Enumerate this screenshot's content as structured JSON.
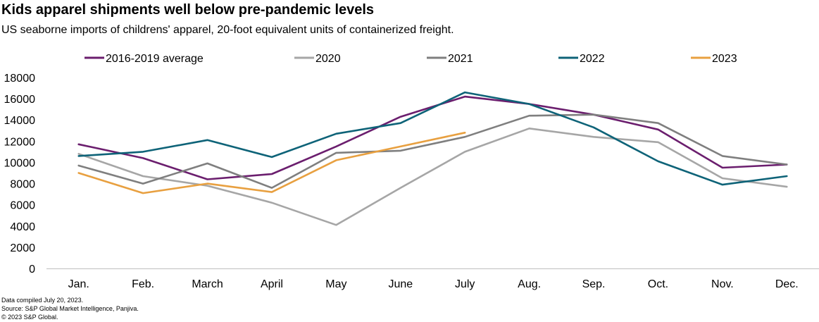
{
  "header": {
    "title": "Kids apparel shipments well below pre-pandemic levels",
    "subtitle": "US seaborne imports of childrens' apparel, 20-foot equivalent units of containerized freight."
  },
  "footnotes": {
    "compiled": "Data compiled July 20, 2023.",
    "source": "Source: S&P Global Market Intelligence, Panjiva.",
    "copyright": "© 2023 S&P Global."
  },
  "chart_data": {
    "type": "line",
    "title": "Kids apparel shipments well below pre-pandemic levels",
    "subtitle": "US seaborne imports of childrens' apparel, 20-foot equivalent units of containerized freight.",
    "xlabel": "",
    "ylabel": "",
    "categories": [
      "Jan.",
      "Feb.",
      "March",
      "April",
      "May",
      "June",
      "July",
      "Aug.",
      "Sep.",
      "Oct.",
      "Nov.",
      "Dec."
    ],
    "ylim": [
      0,
      18000
    ],
    "yticks": [
      0,
      2000,
      4000,
      6000,
      8000,
      10000,
      12000,
      14000,
      16000,
      18000
    ],
    "grid": false,
    "legend_position": "top",
    "series": [
      {
        "name": "2016-2019 average",
        "color": "#6b1e6e",
        "values": [
          11700,
          10400,
          8400,
          8900,
          11500,
          14300,
          16200,
          15500,
          14500,
          13100,
          9500,
          9800
        ]
      },
      {
        "name": "2020",
        "color": "#a6a6a6",
        "values": [
          10800,
          8700,
          7800,
          6200,
          4100,
          7600,
          11000,
          13200,
          12400,
          11900,
          8500,
          7700
        ]
      },
      {
        "name": "2021",
        "color": "#7f7f7f",
        "values": [
          9700,
          8000,
          9900,
          7600,
          10900,
          11100,
          12400,
          14400,
          14500,
          13700,
          10600,
          9800
        ]
      },
      {
        "name": "2022",
        "color": "#0e6378",
        "values": [
          10600,
          11000,
          12100,
          10500,
          12700,
          13700,
          16600,
          15500,
          13300,
          10100,
          7900,
          8700
        ]
      },
      {
        "name": "2023",
        "color": "#e8a040",
        "values": [
          9000,
          7100,
          8000,
          7200,
          10200,
          11500,
          12800,
          null,
          null,
          null,
          null,
          null
        ]
      }
    ]
  }
}
